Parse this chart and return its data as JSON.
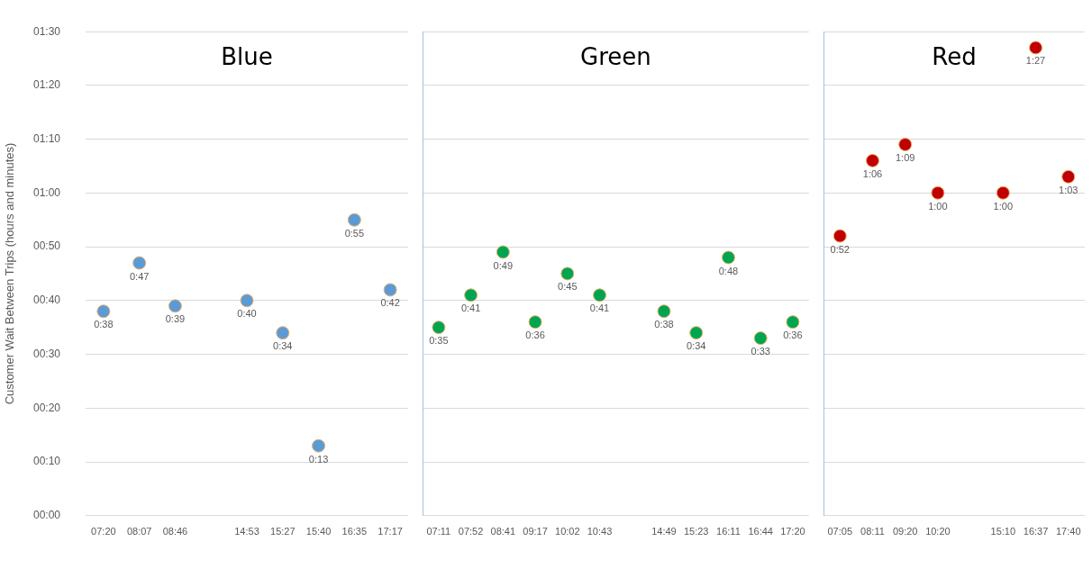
{
  "chart_data": [
    {
      "type": "scatter",
      "title": "Blue",
      "ylabel": "Customer Wait Between Trips (hours and minutes)",
      "categories": [
        "07:20",
        "08:07",
        "08:46",
        null,
        "14:53",
        "15:27",
        "15:40",
        "16:35",
        "17:17"
      ],
      "values": [
        38,
        47,
        39,
        null,
        40,
        34,
        13,
        55,
        42
      ],
      "value_labels": [
        "0:38",
        "0:47",
        "0:39",
        null,
        "0:40",
        "0:34",
        "0:13",
        "0:55",
        "0:42"
      ],
      "color": "#5b9bd5",
      "marker": "circle",
      "grid": "y",
      "ylim": [
        0,
        90
      ],
      "yticks": [
        {
          "value": 0,
          "label": "00:00"
        },
        {
          "value": 10,
          "label": "00:10"
        },
        {
          "value": 20,
          "label": "00:20"
        },
        {
          "value": 30,
          "label": "00:30"
        },
        {
          "value": 40,
          "label": "00:40"
        },
        {
          "value": 50,
          "label": "00:50"
        },
        {
          "value": 60,
          "label": "01:00"
        },
        {
          "value": 70,
          "label": "01:10"
        },
        {
          "value": 80,
          "label": "01:20"
        },
        {
          "value": 90,
          "label": "01:30"
        }
      ]
    },
    {
      "type": "scatter",
      "title": "Green",
      "categories": [
        "07:11",
        "07:52",
        "08:41",
        "09:17",
        "10:02",
        "10:43",
        null,
        "14:49",
        "15:23",
        "16:11",
        "16:44",
        "17:20"
      ],
      "values": [
        35,
        41,
        49,
        36,
        45,
        41,
        null,
        38,
        34,
        48,
        33,
        36
      ],
      "value_labels": [
        "0:35",
        "0:41",
        "0:49",
        "0:36",
        "0:45",
        "0:41",
        null,
        "0:38",
        "0:34",
        "0:48",
        "0:33",
        "0:36"
      ],
      "color": "#00a550",
      "marker": "circle",
      "grid": "y",
      "ylim": [
        0,
        90
      ],
      "tick_labels": "x",
      "yticks": [
        {
          "value": 0,
          "label": null
        },
        {
          "value": 10,
          "label": null
        },
        {
          "value": 20,
          "label": null
        },
        {
          "value": 30,
          "label": null
        },
        {
          "value": 40,
          "label": null
        },
        {
          "value": 50,
          "label": null
        },
        {
          "value": 60,
          "label": null
        },
        {
          "value": 70,
          "label": null
        },
        {
          "value": 80,
          "label": null
        },
        {
          "value": 90,
          "label": null
        }
      ]
    },
    {
      "type": "scatter",
      "title": "Red",
      "categories": [
        "07:05",
        "08:11",
        "09:20",
        "10:20",
        null,
        "15:10",
        "16:37",
        "17:40"
      ],
      "values": [
        52,
        66,
        69,
        60,
        null,
        60,
        87,
        63
      ],
      "value_labels": [
        "0:52",
        "1:06",
        "1:09",
        "1:00",
        null,
        "1:00",
        "1:27",
        "1:03"
      ],
      "color": "#c00000",
      "marker": "circle",
      "grid": "y",
      "ylim": [
        0,
        90
      ],
      "tick_labels": "x",
      "yticks": [
        {
          "value": 0,
          "label": null
        },
        {
          "value": 10,
          "label": null
        },
        {
          "value": 20,
          "label": null
        },
        {
          "value": 30,
          "label": null
        },
        {
          "value": 40,
          "label": null
        },
        {
          "value": 50,
          "label": null
        },
        {
          "value": 60,
          "label": null
        },
        {
          "value": 70,
          "label": null
        },
        {
          "value": 80,
          "label": null
        },
        {
          "value": 90,
          "label": null
        }
      ]
    }
  ]
}
